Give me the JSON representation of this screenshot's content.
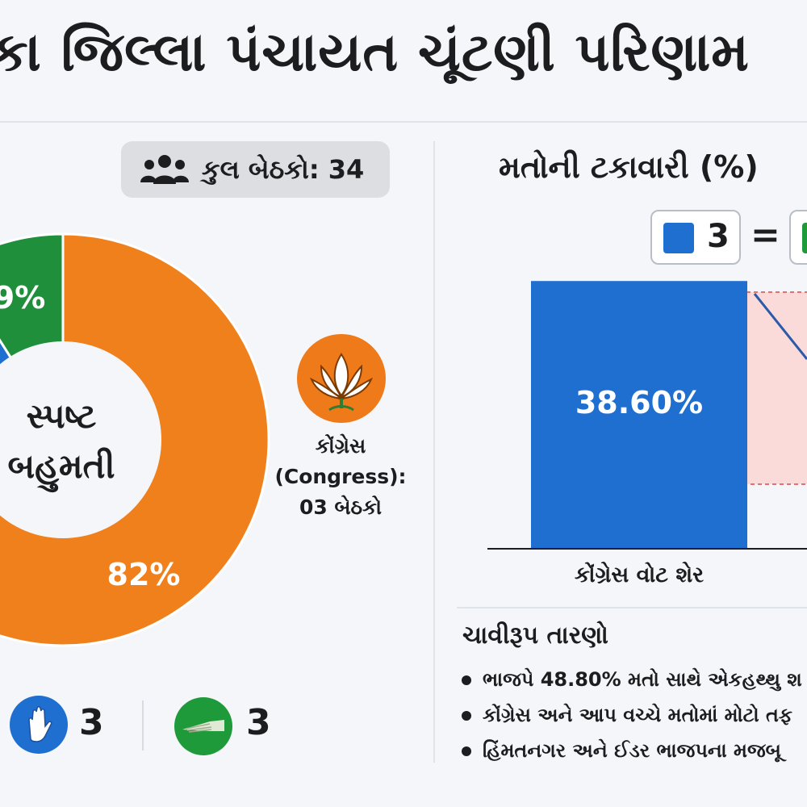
{
  "header": {
    "title": "કા જિલ્લા પંચાયત ચૂંટણી પરિણામ"
  },
  "total_seats": {
    "icon": "people-icon",
    "label": "કુલ બેઠકો: 34"
  },
  "center_label": {
    "line1": "સ્પષ્ટ",
    "line2": "બહુમતી"
  },
  "side_party": {
    "icon": "lotus-icon",
    "line1": "કોંગ્રેસ",
    "line2": "(Congress):",
    "line3": "03 બેઠકો"
  },
  "legend": [
    {
      "icon": "hand-icon",
      "value": "3",
      "color": "#1f6fd0"
    },
    {
      "icon": "broom-icon",
      "value": "3",
      "color": "#1f9a3b"
    }
  ],
  "vote_share": {
    "title": "મતોની ટકાવારી (%)",
    "key": {
      "left_value": "3",
      "equals": "="
    },
    "bar_caption": "કોંગ્રેસ વોટ શેર"
  },
  "findings": {
    "title": "ચાવીરૂપ તારણો",
    "items": [
      "ભાજપે 48.80% મતો સાથે એકહથ્થુ શ",
      "કોંગ્રેસ અને આપ વચ્ચે મતોમાં મોટો તફ",
      "હિંમતનગર અને ઈડર ભાજપના મજબૂ"
    ]
  },
  "chart_data": [
    {
      "type": "pie",
      "title": "",
      "slices": [
        {
          "label": "82%",
          "value": 82,
          "color": "#f0801c"
        },
        {
          "label": "9%",
          "value": 9,
          "color": "#1f6fd0"
        },
        {
          "label": "9%",
          "value": 9,
          "color": "#208f3c"
        }
      ]
    },
    {
      "type": "bar",
      "title": "મતોની ટકાવારી (%)",
      "categories": [
        "કોંગ્રેસ વોટ શેર"
      ],
      "values": [
        38.6
      ],
      "labels": [
        "38.60%"
      ],
      "ylim": [
        0,
        48.8
      ],
      "color": "#1f6fd0"
    }
  ]
}
